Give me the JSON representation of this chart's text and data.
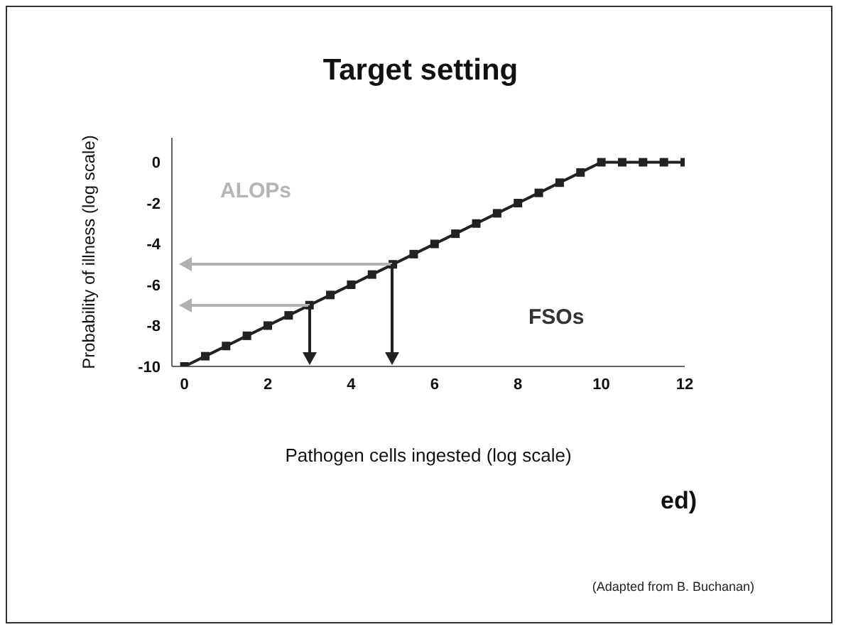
{
  "chart_data": {
    "type": "line",
    "title": "Target setting",
    "xlabel": "Pathogen cells ingested (log scale)",
    "ylabel": "Probability of illness (log scale)",
    "annotations": [
      "ALOPs",
      "FSOs",
      "ed)",
      "(Adapted from B. Buchanan)"
    ],
    "xlim": [
      -0.3,
      12
    ],
    "ylim": [
      -10,
      1.2
    ],
    "xticks": [
      0,
      2,
      4,
      6,
      8,
      10,
      12
    ],
    "yticks": [
      0,
      -2,
      -4,
      -6,
      -8,
      -10
    ],
    "grid": false,
    "series": [
      {
        "color": "#222222",
        "marker": "square",
        "line_style": "solid",
        "x": [
          0,
          0.5,
          1,
          1.5,
          2,
          2.5,
          3,
          3.5,
          4,
          4.5,
          5,
          5.5,
          6,
          6.5,
          7,
          7.5,
          8,
          8.5,
          9,
          9.5,
          10,
          10.5,
          11,
          11.5,
          12
        ],
        "values": [
          -10,
          -9.5,
          -9,
          -8.5,
          -8,
          -7.5,
          -7,
          -6.5,
          -6,
          -5.5,
          -5,
          -4.5,
          -4,
          -3.5,
          -3,
          -2.5,
          -2,
          -1.5,
          -1,
          -0.5,
          0,
          0,
          0,
          0,
          0
        ]
      }
    ]
  }
}
